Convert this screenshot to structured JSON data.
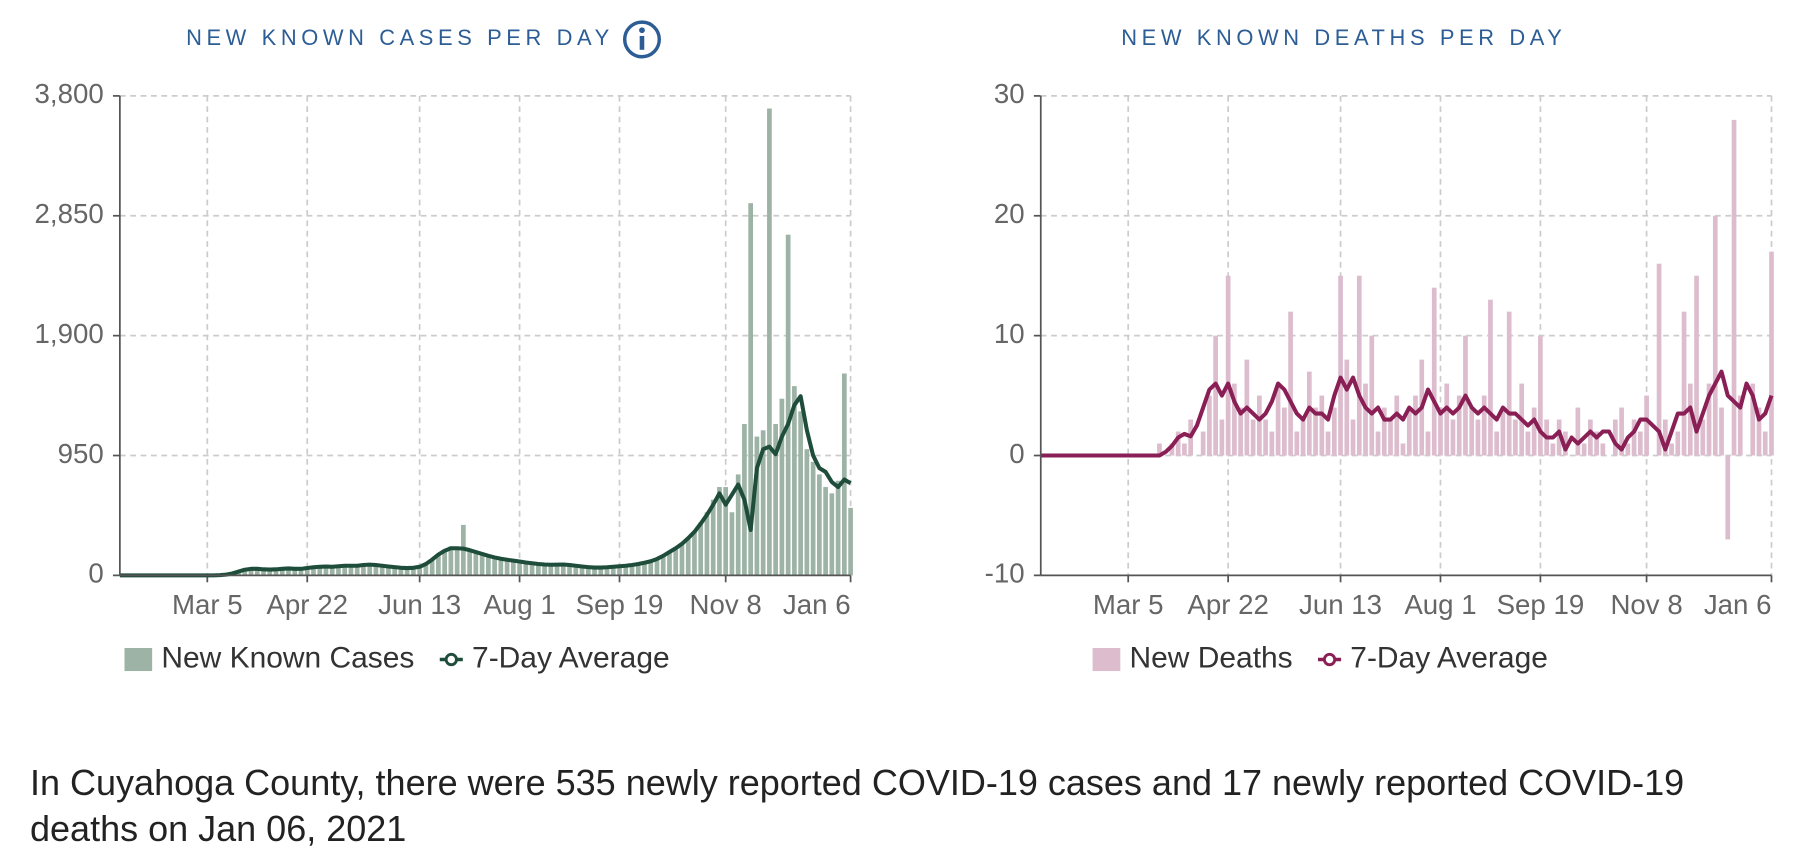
{
  "chart_data": [
    {
      "type": "combo",
      "title": "NEW KNOWN CASES PER DAY",
      "categories": [
        null,
        null,
        null,
        null,
        null,
        null,
        null,
        null,
        null,
        null,
        null,
        null,
        null,
        null,
        "Mar 5",
        null,
        null,
        null,
        null,
        null,
        null,
        null,
        null,
        null,
        null,
        null,
        null,
        null,
        null,
        null,
        "Apr 22",
        null,
        null,
        null,
        null,
        null,
        null,
        null,
        null,
        null,
        null,
        null,
        null,
        null,
        null,
        null,
        null,
        null,
        "Jun 13",
        null,
        null,
        null,
        null,
        null,
        null,
        null,
        null,
        null,
        null,
        null,
        null,
        null,
        null,
        null,
        "Aug 1",
        null,
        null,
        null,
        null,
        null,
        null,
        null,
        null,
        null,
        null,
        null,
        null,
        null,
        null,
        null,
        "Sep 19",
        null,
        null,
        null,
        null,
        null,
        null,
        null,
        null,
        null,
        null,
        null,
        null,
        null,
        null,
        null,
        null,
        "Nov 8",
        null,
        null,
        null,
        null,
        null,
        null,
        null,
        null,
        null,
        null,
        null,
        null,
        null,
        null,
        null,
        null,
        null,
        null,
        null,
        "Jan 6"
      ],
      "series": [
        {
          "name": "New Known Cases",
          "type": "bar",
          "color": "#9db3a5",
          "values": [
            0,
            0,
            0,
            0,
            0,
            0,
            0,
            0,
            0,
            0,
            0,
            0,
            0,
            0,
            0,
            1,
            3,
            8,
            20,
            35,
            50,
            60,
            55,
            45,
            40,
            50,
            55,
            60,
            50,
            45,
            60,
            70,
            65,
            75,
            60,
            70,
            80,
            75,
            70,
            85,
            90,
            80,
            75,
            70,
            65,
            60,
            55,
            60,
            70,
            90,
            130,
            170,
            200,
            230,
            210,
            400,
            200,
            180,
            170,
            150,
            140,
            130,
            120,
            115,
            110,
            100,
            95,
            90,
            85,
            80,
            85,
            90,
            80,
            75,
            70,
            65,
            60,
            60,
            65,
            70,
            70,
            75,
            80,
            90,
            100,
            110,
            130,
            160,
            190,
            220,
            250,
            300,
            350,
            420,
            500,
            600,
            700,
            700,
            500,
            800,
            1200,
            2950,
            1100,
            1150,
            3700,
            1200,
            1400,
            2700,
            1500,
            1300,
            1000,
            900,
            800,
            700,
            650,
            750,
            1600,
            535
          ]
        },
        {
          "name": "7-Day Average",
          "type": "line",
          "color": "#1f4d3b",
          "values": [
            0,
            0,
            0,
            0,
            0,
            0,
            0,
            0,
            0,
            0,
            0,
            0,
            0,
            0,
            0,
            0,
            2,
            6,
            15,
            30,
            45,
            52,
            52,
            48,
            46,
            48,
            52,
            55,
            52,
            52,
            58,
            64,
            68,
            70,
            68,
            72,
            76,
            76,
            76,
            82,
            85,
            82,
            76,
            70,
            65,
            60,
            58,
            60,
            68,
            90,
            125,
            165,
            195,
            215,
            215,
            212,
            200,
            185,
            170,
            155,
            142,
            132,
            124,
            117,
            110,
            102,
            96,
            90,
            86,
            84,
            85,
            86,
            82,
            76,
            70,
            65,
            62,
            62,
            64,
            68,
            72,
            76,
            82,
            90,
            100,
            112,
            130,
            155,
            185,
            215,
            250,
            295,
            345,
            410,
            480,
            560,
            650,
            560,
            640,
            720,
            600,
            360,
            850,
            1000,
            1020,
            960,
            1100,
            1200,
            1350,
            1420,
            1150,
            950,
            850,
            820,
            740,
            700,
            760,
            730
          ]
        }
      ],
      "ylim": [
        0,
        3800
      ],
      "yticks": [
        0,
        950,
        {
          "value": 1900,
          "label": "1,900"
        },
        {
          "value": 2850,
          "label": "2,850"
        },
        {
          "value": 3800,
          "label": "3,800"
        }
      ],
      "grid": true
    },
    {
      "type": "combo",
      "title": "NEW KNOWN DEATHS PER DAY",
      "categories": [
        null,
        null,
        null,
        null,
        null,
        null,
        null,
        null,
        null,
        null,
        null,
        null,
        null,
        null,
        "Mar 5",
        null,
        null,
        null,
        null,
        null,
        null,
        null,
        null,
        null,
        null,
        null,
        null,
        null,
        null,
        null,
        "Apr 22",
        null,
        null,
        null,
        null,
        null,
        null,
        null,
        null,
        null,
        null,
        null,
        null,
        null,
        null,
        null,
        null,
        null,
        "Jun 13",
        null,
        null,
        null,
        null,
        null,
        null,
        null,
        null,
        null,
        null,
        null,
        null,
        null,
        null,
        null,
        "Aug 1",
        null,
        null,
        null,
        null,
        null,
        null,
        null,
        null,
        null,
        null,
        null,
        null,
        null,
        null,
        null,
        "Sep 19",
        null,
        null,
        null,
        null,
        null,
        null,
        null,
        null,
        null,
        null,
        null,
        null,
        null,
        null,
        null,
        null,
        "Nov 8",
        null,
        null,
        null,
        null,
        null,
        null,
        null,
        null,
        null,
        null,
        null,
        null,
        null,
        null,
        null,
        null,
        null,
        null,
        null,
        "Jan 6"
      ],
      "series": [
        {
          "name": "New Deaths",
          "type": "bar",
          "color": "#dcbccd",
          "values": [
            0,
            0,
            0,
            0,
            0,
            0,
            0,
            0,
            0,
            0,
            0,
            0,
            0,
            0,
            0,
            0,
            0,
            0,
            0,
            1,
            0,
            1,
            2,
            1,
            3,
            0,
            2,
            5,
            10,
            3,
            15,
            6,
            4,
            8,
            3,
            5,
            3,
            2,
            6,
            4,
            12,
            2,
            3,
            7,
            4,
            5,
            2,
            4,
            15,
            8,
            3,
            15,
            6,
            10,
            2,
            4,
            3,
            5,
            1,
            4,
            5,
            8,
            2,
            14,
            4,
            6,
            3,
            5,
            10,
            4,
            3,
            5,
            13,
            2,
            4,
            12,
            3,
            6,
            2,
            4,
            10,
            3,
            1,
            3,
            2,
            0,
            4,
            1,
            3,
            2,
            1,
            0,
            3,
            4,
            1,
            3,
            2,
            5,
            0,
            16,
            3,
            1,
            2,
            12,
            6,
            15,
            3,
            6,
            20,
            4,
            -7,
            28,
            5,
            0,
            6,
            4,
            2,
            17
          ]
        },
        {
          "name": "7-Day Average",
          "type": "line",
          "color": "#8a1f56",
          "values": [
            0,
            0,
            0,
            0,
            0,
            0,
            0,
            0,
            0,
            0,
            0,
            0,
            0,
            0,
            0,
            0,
            0,
            0,
            0,
            0,
            0.3,
            0.8,
            1.5,
            1.8,
            1.6,
            2.5,
            4,
            5.5,
            6,
            5,
            6,
            4.5,
            3.5,
            4,
            3.5,
            3,
            3.5,
            4.5,
            6,
            5.5,
            4.5,
            3.5,
            3,
            4,
            3.5,
            3.5,
            3,
            5,
            6.5,
            5.5,
            6.5,
            5,
            4,
            3.5,
            4,
            3,
            3,
            3.5,
            3,
            4,
            3.5,
            4,
            5.5,
            4.5,
            3.5,
            4,
            3.5,
            4,
            5,
            4,
            3.5,
            4,
            3.5,
            3,
            4,
            3.5,
            3.5,
            3,
            2.5,
            3,
            2,
            1.5,
            1.5,
            2,
            0.5,
            1.5,
            1,
            1.5,
            2,
            1.5,
            2,
            2,
            1,
            0.5,
            1.5,
            2,
            3,
            3,
            2.5,
            2,
            0.5,
            2,
            3.5,
            3.5,
            4,
            2,
            3.5,
            5,
            6,
            7,
            5,
            4.5,
            4,
            6,
            5,
            3,
            3.5,
            5
          ]
        }
      ],
      "ylim": [
        -10,
        30
      ],
      "yticks": [
        -10,
        0,
        10,
        20,
        30
      ],
      "grid": true
    }
  ],
  "footer": "In Cuyahoga County, there were 535 newly reported COVID-19 cases and 17 newly reported COVID-19 deaths on Jan 06, 2021"
}
